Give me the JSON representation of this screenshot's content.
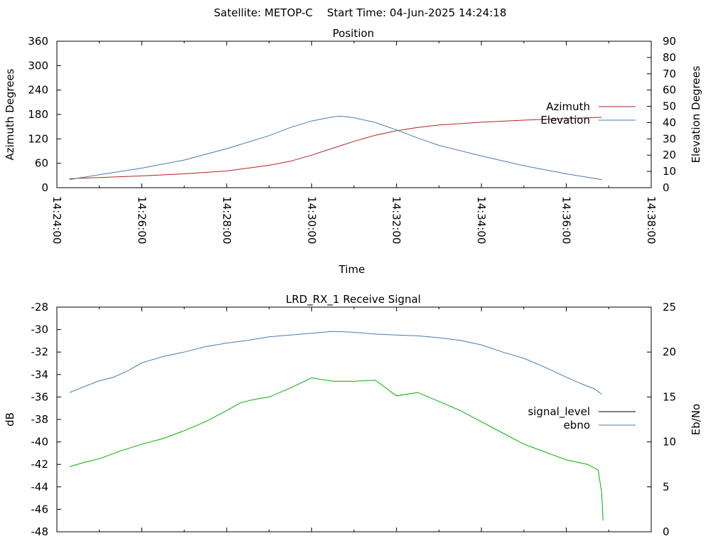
{
  "header": {
    "satellite": "Satellite: METOP-C",
    "start_time": "Start Time: 04-Jun-2025 14:24:18"
  },
  "chart_data": [
    {
      "type": "line",
      "title": "Position",
      "xlabel": "Time",
      "ylabel": "Azimuth Degrees",
      "y2label": "Elevation Degrees",
      "xlim": [
        "14:24:00",
        "14:38:00"
      ],
      "ylim": [
        0,
        360
      ],
      "y2lim": [
        0,
        90
      ],
      "xticks": [
        "14:24:00",
        "14:26:00",
        "14:28:00",
        "14:30:00",
        "14:32:00",
        "14:34:00",
        "14:36:00",
        "14:38:00"
      ],
      "yticks": [
        0,
        60,
        120,
        180,
        240,
        300,
        360
      ],
      "y2ticks": [
        0,
        10,
        20,
        30,
        40,
        50,
        60,
        70,
        80,
        90
      ],
      "legend_position": "right",
      "series": [
        {
          "name": "Azimuth",
          "axis": "y",
          "color": "#b22222",
          "x": [
            "14:24:18",
            "14:25:00",
            "14:26:00",
            "14:27:00",
            "14:28:00",
            "14:29:00",
            "14:29:30",
            "14:30:00",
            "14:30:30",
            "14:31:00",
            "14:31:30",
            "14:32:00",
            "14:32:30",
            "14:33:00",
            "14:34:00",
            "14:35:00",
            "14:36:00",
            "14:36:50"
          ],
          "values": [
            22,
            25,
            29,
            34,
            41,
            55,
            65,
            80,
            97,
            114,
            129,
            140,
            148,
            154,
            161,
            166,
            170,
            173
          ]
        },
        {
          "name": "Elevation",
          "axis": "y2",
          "color": "#4a7ab0",
          "x": [
            "14:24:18",
            "14:25:00",
            "14:26:00",
            "14:27:00",
            "14:28:00",
            "14:29:00",
            "14:29:30",
            "14:30:00",
            "14:30:30",
            "14:30:40",
            "14:31:00",
            "14:31:30",
            "14:32:00",
            "14:32:30",
            "14:33:00",
            "14:34:00",
            "14:35:00",
            "14:36:00",
            "14:36:50"
          ],
          "values": [
            5,
            8,
            12,
            17,
            24,
            32,
            37,
            41,
            43.5,
            44,
            43,
            40,
            35.5,
            30.5,
            26,
            19.5,
            13.5,
            8.5,
            5
          ]
        }
      ]
    },
    {
      "type": "line",
      "title": "LRD_RX_1 Receive Signal",
      "ylabel": "dB",
      "y2label": "Eb/No",
      "xlim": [
        "14:24:00",
        "14:38:00"
      ],
      "ylim": [
        -48,
        -28
      ],
      "y2lim": [
        0,
        25
      ],
      "yticks": [
        -48,
        -46,
        -44,
        -42,
        -40,
        -38,
        -36,
        -34,
        -32,
        -30,
        -28
      ],
      "y2ticks": [
        0,
        5,
        10,
        15,
        20,
        25
      ],
      "legend_position": "right",
      "series": [
        {
          "name": "signal_level",
          "axis": "y",
          "color": "#000000",
          "x": [],
          "values": []
        },
        {
          "name": "ebno",
          "axis": "y2",
          "color": "#4a7ab0",
          "x": [
            "14:24:18",
            "14:24:40",
            "14:25:00",
            "14:25:20",
            "14:25:40",
            "14:26:00",
            "14:26:30",
            "14:27:00",
            "14:27:30",
            "14:28:00",
            "14:28:30",
            "14:29:00",
            "14:29:30",
            "14:30:00",
            "14:30:30",
            "14:31:00",
            "14:31:30",
            "14:32:00",
            "14:32:30",
            "14:33:00",
            "14:33:30",
            "14:34:00",
            "14:34:30",
            "14:35:00",
            "14:35:30",
            "14:36:00",
            "14:36:20",
            "14:36:40",
            "14:36:50"
          ],
          "values": [
            15.5,
            16.2,
            16.8,
            17.2,
            17.9,
            18.8,
            19.5,
            20.0,
            20.6,
            21.0,
            21.3,
            21.7,
            21.9,
            22.1,
            22.3,
            22.2,
            22.0,
            21.9,
            21.8,
            21.6,
            21.3,
            20.8,
            20.0,
            19.3,
            18.3,
            17.2,
            16.5,
            15.9,
            15.3
          ]
        },
        {
          "name": "",
          "axis": "y",
          "color": "#00b000",
          "x": [
            "14:24:18",
            "14:24:40",
            "14:25:00",
            "14:25:30",
            "14:26:00",
            "14:26:30",
            "14:27:00",
            "14:27:30",
            "14:28:00",
            "14:28:20",
            "14:28:40",
            "14:29:00",
            "14:29:30",
            "14:30:00",
            "14:30:30",
            "14:31:00",
            "14:31:30",
            "14:32:00",
            "14:32:30",
            "14:33:00",
            "14:33:30",
            "14:34:00",
            "14:34:30",
            "14:35:00",
            "14:35:30",
            "14:36:00",
            "14:36:30",
            "14:36:45",
            "14:36:50",
            "14:36:52"
          ],
          "values": [
            -42.2,
            -41.8,
            -41.5,
            -40.8,
            -40.2,
            -39.7,
            -39.0,
            -38.2,
            -37.2,
            -36.5,
            -36.2,
            -36.0,
            -35.2,
            -34.3,
            -34.6,
            -34.6,
            -34.5,
            -35.9,
            -35.6,
            -36.4,
            -37.2,
            -38.2,
            -39.2,
            -40.2,
            -40.9,
            -41.6,
            -42.0,
            -42.5,
            -44.5,
            -47.0
          ]
        }
      ]
    }
  ]
}
